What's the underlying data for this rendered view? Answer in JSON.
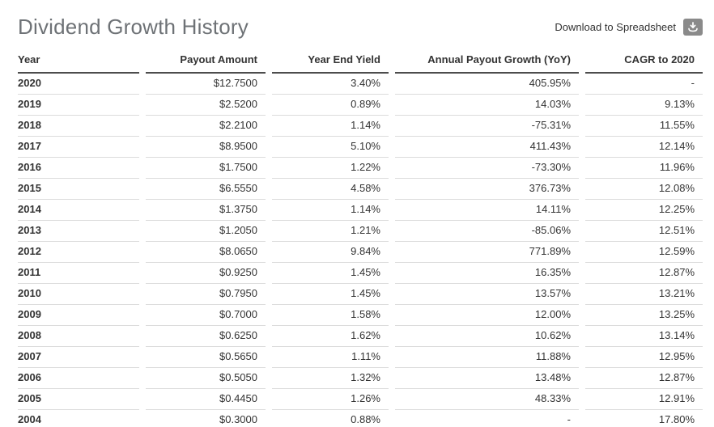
{
  "header": {
    "title": "Dividend Growth History",
    "download_label": "Download to Spreadsheet"
  },
  "table": {
    "columns": [
      "Year",
      "Payout Amount",
      "Year End Yield",
      "Annual Payout Growth (YoY)",
      "CAGR to 2020"
    ],
    "column_keys": [
      "year",
      "payout-amount",
      "year-end-yield",
      "annual-payout-growth-yoy",
      "cagr-to-2020"
    ],
    "rows": [
      [
        "2020",
        "$12.7500",
        "3.40%",
        "405.95%",
        "-"
      ],
      [
        "2019",
        "$2.5200",
        "0.89%",
        "14.03%",
        "9.13%"
      ],
      [
        "2018",
        "$2.2100",
        "1.14%",
        "-75.31%",
        "11.55%"
      ],
      [
        "2017",
        "$8.9500",
        "5.10%",
        "411.43%",
        "12.14%"
      ],
      [
        "2016",
        "$1.7500",
        "1.22%",
        "-73.30%",
        "11.96%"
      ],
      [
        "2015",
        "$6.5550",
        "4.58%",
        "376.73%",
        "12.08%"
      ],
      [
        "2014",
        "$1.3750",
        "1.14%",
        "14.11%",
        "12.25%"
      ],
      [
        "2013",
        "$1.2050",
        "1.21%",
        "-85.06%",
        "12.51%"
      ],
      [
        "2012",
        "$8.0650",
        "9.84%",
        "771.89%",
        "12.59%"
      ],
      [
        "2011",
        "$0.9250",
        "1.45%",
        "16.35%",
        "12.87%"
      ],
      [
        "2010",
        "$0.7950",
        "1.45%",
        "13.57%",
        "13.21%"
      ],
      [
        "2009",
        "$0.7000",
        "1.58%",
        "12.00%",
        "13.25%"
      ],
      [
        "2008",
        "$0.6250",
        "1.62%",
        "10.62%",
        "13.14%"
      ],
      [
        "2007",
        "$0.5650",
        "1.11%",
        "11.88%",
        "12.95%"
      ],
      [
        "2006",
        "$0.5050",
        "1.32%",
        "13.48%",
        "12.87%"
      ],
      [
        "2005",
        "$0.4450",
        "1.26%",
        "48.33%",
        "12.91%"
      ],
      [
        "2004",
        "$0.3000",
        "0.88%",
        "-",
        "17.80%"
      ]
    ]
  },
  "colors": {
    "title_text": "#6e7276",
    "body_text": "#333333",
    "row_border": "#dcdcdc",
    "strong_border": "#4d4d4d",
    "icon_button_bg": "#8a8a8a",
    "icon_glyph": "#ffffff"
  }
}
